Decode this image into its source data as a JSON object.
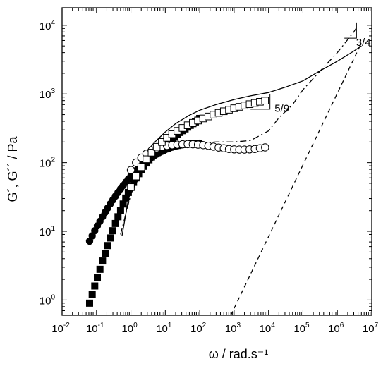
{
  "chart_data": {
    "type": "scatter",
    "title": "",
    "xlabel": "ω / rad.s⁻¹",
    "ylabel": "G´, G´´ / Pa",
    "x_scale": "log",
    "y_scale": "log",
    "xlim": [
      0.01,
      10000000
    ],
    "ylim": [
      0.6,
      18000
    ],
    "x_ticks": [
      {
        "base": "10",
        "exp": "-2"
      },
      {
        "base": "10",
        "exp": "-1"
      },
      {
        "base": "10",
        "exp": "0"
      },
      {
        "base": "10",
        "exp": "1"
      },
      {
        "base": "10",
        "exp": "2"
      },
      {
        "base": "10",
        "exp": "3"
      },
      {
        "base": "10",
        "exp": "4"
      },
      {
        "base": "10",
        "exp": "5"
      },
      {
        "base": "10",
        "exp": "6"
      },
      {
        "base": "10",
        "exp": "7"
      }
    ],
    "y_ticks": [
      {
        "base": "10",
        "exp": "0"
      },
      {
        "base": "10",
        "exp": "1"
      },
      {
        "base": "10",
        "exp": "2"
      },
      {
        "base": "10",
        "exp": "3"
      },
      {
        "base": "10",
        "exp": "4"
      }
    ],
    "grid": false,
    "legend": "none",
    "series": [
      {
        "marker": "filled-circle",
        "x": [
          0.063,
          0.075,
          0.089,
          0.106,
          0.126,
          0.15,
          0.178,
          0.211,
          0.251,
          0.299,
          0.355,
          0.422,
          0.501,
          0.596,
          0.708,
          0.841,
          1.0,
          1.19,
          1.41,
          1.68,
          2.0,
          2.37,
          2.82,
          3.35,
          3.98,
          4.73,
          5.62,
          6.68,
          7.94,
          9.44,
          11.2,
          13.3,
          15.8,
          18.8,
          22.4,
          26.6,
          31.6,
          37.6,
          44.7,
          53.1,
          63.1,
          75.0,
          89.1,
          100.0
        ],
        "y": [
          7.2,
          8.6,
          10.2,
          12.0,
          14.0,
          16.3,
          18.9,
          21.8,
          25.1,
          28.6,
          32.5,
          36.8,
          41.4,
          46.4,
          51.8,
          57.5,
          63.5,
          69.8,
          76.5,
          83.4,
          90.5,
          97.7,
          105,
          112,
          119,
          126,
          133,
          140,
          146,
          152,
          158,
          163,
          168,
          172,
          176,
          179,
          182,
          184,
          186,
          188,
          189,
          190,
          191,
          192
        ]
      },
      {
        "marker": "filled-square",
        "x": [
          0.063,
          0.075,
          0.089,
          0.106,
          0.126,
          0.15,
          0.178,
          0.211,
          0.251,
          0.299,
          0.355,
          0.422,
          0.501,
          0.596,
          0.708,
          0.841,
          1.0,
          1.19,
          1.41,
          1.68,
          2.0,
          2.37,
          2.82,
          3.35,
          3.98,
          4.73,
          5.62,
          6.68,
          7.94,
          9.44,
          11.2,
          13.3,
          15.8,
          18.8,
          22.4,
          26.6,
          31.6,
          37.6,
          44.7,
          53.1,
          63.1,
          75.0,
          89.1,
          100.0
        ],
        "y": [
          0.9,
          1.2,
          1.6,
          2.1,
          2.8,
          3.7,
          4.8,
          6.2,
          8.0,
          10.2,
          13.0,
          16.3,
          20.3,
          25.0,
          30.5,
          36.8,
          43.8,
          51.6,
          60.0,
          69.0,
          78.5,
          88.5,
          99,
          110,
          121,
          133,
          145,
          158,
          171,
          184,
          198,
          212,
          227,
          242,
          258,
          275,
          292,
          310,
          329,
          349,
          370,
          392,
          415,
          440
        ]
      },
      {
        "marker": "open-circle",
        "x": [
          1.0,
          1.41,
          2.0,
          2.82,
          3.98,
          5.62,
          7.94,
          11.2,
          15.8,
          22.4,
          31.6,
          44.7,
          63.1,
          89.1,
          126,
          178,
          251,
          355,
          501,
          708,
          1000,
          1410,
          2000,
          2820,
          3980,
          5620,
          7940
        ],
        "y": [
          78,
          100,
          118,
          135,
          150,
          162,
          170,
          176,
          180,
          183,
          185,
          186,
          185,
          183,
          180,
          176,
          171,
          166,
          162,
          158,
          156,
          155,
          155,
          156,
          158,
          162,
          167
        ]
      },
      {
        "marker": "open-square",
        "x": [
          1.0,
          1.41,
          2.0,
          2.82,
          3.98,
          5.62,
          7.94,
          11.2,
          15.8,
          22.4,
          31.6,
          44.7,
          63.1,
          89.1,
          126,
          178,
          251,
          355,
          501,
          708,
          1000,
          1410,
          2000,
          2820,
          3980,
          5620,
          7940
        ],
        "y": [
          44,
          63,
          86,
          112,
          140,
          170,
          200,
          230,
          260,
          290,
          320,
          350,
          380,
          410,
          440,
          470,
          500,
          530,
          560,
          590,
          620,
          650,
          680,
          710,
          740,
          770,
          800
        ]
      },
      {
        "line": "solid",
        "x": [
          0.55,
          0.8,
          1.2,
          2,
          3,
          5,
          10,
          20,
          50,
          100,
          300,
          1000,
          3000,
          10000,
          30000,
          100000,
          300000,
          1000000,
          3000000,
          5000000
        ],
        "y": [
          8.5,
          25,
          60,
          105,
          150,
          200,
          280,
          370,
          490,
          580,
          700,
          830,
          940,
          1050,
          1250,
          1550,
          2150,
          3000,
          4200,
          5000
        ]
      },
      {
        "line": "dash-dot",
        "x": [
          0.5,
          1,
          2,
          5,
          10,
          30,
          100,
          300,
          1000,
          3000,
          10000,
          20000,
          50000,
          100000,
          300000,
          1000000,
          3000000,
          4000000
        ],
        "y": [
          9,
          35,
          70,
          120,
          150,
          180,
          195,
          200,
          200,
          210,
          290,
          450,
          700,
          1150,
          2100,
          4000,
          8000,
          10000
        ]
      },
      {
        "line": "dashed",
        "x": [
          800,
          5000000
        ],
        "y": [
          0.6,
          5500
        ]
      }
    ],
    "annotations": [
      {
        "text": "3/4",
        "at": [
          3500000,
          5000
        ]
      },
      {
        "text": "5/9",
        "at": [
          15000,
          550
        ]
      }
    ],
    "slope_triangles": [
      {
        "x": [
          1600000,
          3600000
        ],
        "y": [
          6500,
          11000
        ]
      },
      {
        "x": [
          3000,
          11000
        ],
        "y": [
          600,
          1000
        ]
      }
    ]
  }
}
